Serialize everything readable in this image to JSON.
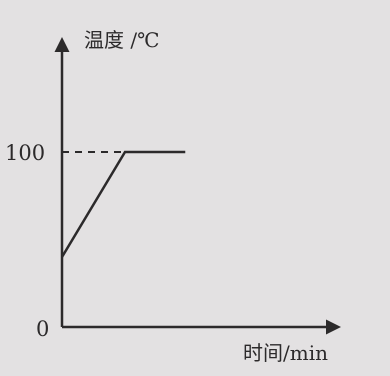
{
  "chart_data": {
    "type": "line",
    "ylabel": "温度 /℃",
    "xlabel": "时间/min",
    "origin_label": "0",
    "y_ticks": [
      100
    ],
    "ylim": [
      0,
      165
    ],
    "xlim": [
      0,
      10
    ],
    "grid": false,
    "series": [
      {
        "x": [
          0,
          2.3,
          4.5
        ],
        "y": [
          40,
          100,
          100
        ]
      }
    ],
    "reference_line": {
      "y": 100,
      "x_from": 0,
      "x_to": 2.3,
      "style": "dashed"
    },
    "colors": {
      "ink": "#2c2a2b",
      "background": "#e3e1e2"
    }
  }
}
